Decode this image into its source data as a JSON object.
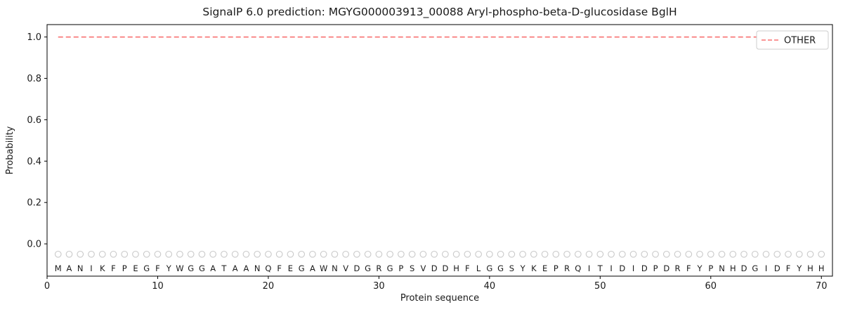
{
  "figure": {
    "title": "SignalP 6.0 prediction: MGYG000003913_00088 Aryl-phospho-beta-D-glucosidase BglH"
  },
  "chart_data": {
    "type": "line",
    "title": "SignalP 6.0 prediction: MGYG000003913_00088 Aryl-phospho-beta-D-glucosidase BglH",
    "xlabel": "Protein sequence",
    "ylabel": "Probability",
    "xlim": [
      0,
      71
    ],
    "ylim": [
      -0.156,
      1.06
    ],
    "xticks": [
      0,
      10,
      20,
      30,
      40,
      50,
      60,
      70
    ],
    "yticks": [
      0.0,
      0.2,
      0.4,
      0.6,
      0.8,
      1.0
    ],
    "grid": false,
    "sequence": "MANIKFPEGFYWGGATAANQFEGAWNVDGRGPSVDDHFLGGSYKEPRQITIDIDPDRFYPNHDGIDFYHH",
    "series": [
      {
        "name": "OTHER",
        "line_style": "dashed",
        "color": "#f87272",
        "x_start": 1,
        "x_end": 70,
        "constant_value": 1.0
      }
    ],
    "residue_markers": {
      "shape": "open-circle",
      "color": "#c9c9c9",
      "y": -0.05
    },
    "residue_letters": {
      "color": "#2b2b2b",
      "y": -0.118
    },
    "legend": {
      "position": "upper right",
      "entries": [
        {
          "label": "OTHER",
          "color": "#f87272",
          "dashed": true
        }
      ]
    },
    "colors": {
      "spine": "#000000",
      "background": "#ffffff"
    }
  }
}
